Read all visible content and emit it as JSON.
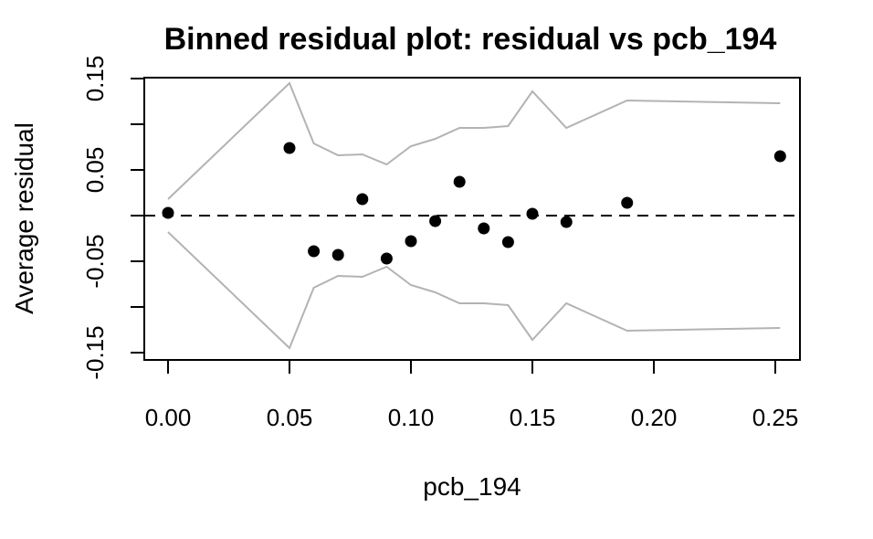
{
  "chart_data": {
    "type": "scatter",
    "title": "Binned residual plot: residual vs pcb_194",
    "xlabel": "pcb_194",
    "ylabel": "Average residual",
    "xlim": [
      -0.01,
      0.262
    ],
    "ylim": [
      -0.158,
      0.158
    ],
    "x_ticks": [
      0.0,
      0.05,
      0.1,
      0.15,
      0.2,
      0.25
    ],
    "x_tick_labels": [
      "0.00",
      "0.05",
      "0.10",
      "0.15",
      "0.20",
      "0.25"
    ],
    "y_ticks": [
      -0.15,
      -0.1,
      -0.05,
      0.0,
      0.05,
      0.1,
      0.15
    ],
    "y_tick_labels": [
      "-0.15",
      "",
      "-0.05",
      "",
      "0.05",
      "",
      "0.15"
    ],
    "grid": false,
    "reference_line": {
      "y": 0,
      "style": "dashed",
      "color": "#000000"
    },
    "points": {
      "color": "#000000",
      "x": [
        0.0,
        0.05,
        0.06,
        0.07,
        0.08,
        0.09,
        0.1,
        0.11,
        0.12,
        0.13,
        0.14,
        0.15,
        0.164,
        0.189,
        0.252
      ],
      "y": [
        0.003,
        0.074,
        -0.039,
        -0.043,
        0.018,
        -0.047,
        -0.028,
        -0.006,
        0.037,
        -0.014,
        -0.029,
        0.002,
        -0.007,
        0.014,
        0.065
      ]
    },
    "bounds": {
      "color": "#b3b3b3",
      "x": [
        0.0,
        0.05,
        0.06,
        0.07,
        0.08,
        0.09,
        0.1,
        0.11,
        0.12,
        0.13,
        0.14,
        0.15,
        0.164,
        0.189,
        0.252
      ],
      "upper": [
        0.018,
        0.145,
        0.079,
        0.066,
        0.067,
        0.056,
        0.076,
        0.084,
        0.096,
        0.096,
        0.098,
        0.136,
        0.096,
        0.126,
        0.123
      ],
      "lower": [
        -0.018,
        -0.145,
        -0.079,
        -0.066,
        -0.067,
        -0.056,
        -0.076,
        -0.084,
        -0.096,
        -0.096,
        -0.098,
        -0.136,
        -0.096,
        -0.126,
        -0.123
      ]
    }
  }
}
